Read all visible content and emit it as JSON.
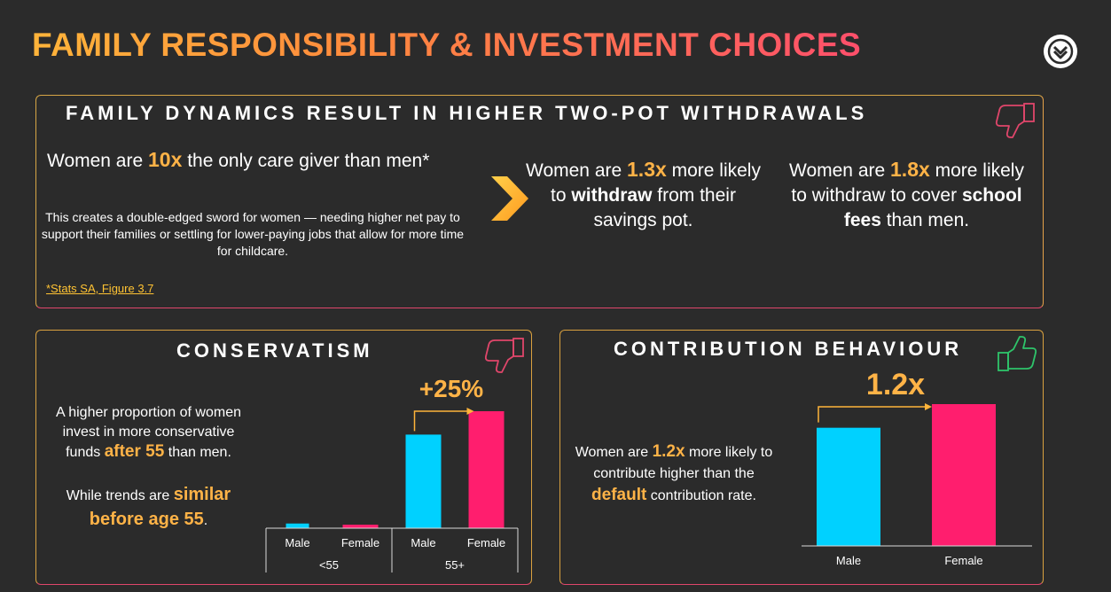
{
  "title": "FAMILY RESPONSIBILITY & INVESTMENT CHOICES",
  "icons": {
    "logo": "discovery-logo-icon",
    "thumbs_down": "thumbs-down-icon",
    "thumbs_up": "thumbs-up-icon",
    "arrow": "chevron-right-icon"
  },
  "colors": {
    "orange": "#ffb347",
    "pink": "#ff1e6e",
    "cyan": "#00d1ff",
    "accent_arrow": "#ffb43a"
  },
  "family": {
    "heading": "FAMILY DYNAMICS RESULT IN HIGHER TWO-POT WITHDRAWALS",
    "stat1": {
      "pre": "Women are ",
      "value": "10x",
      "post": " the only care giver than men*"
    },
    "description": "This creates a double-edged sword for women — needing higher net pay to support their families or settling for lower-paying jobs that allow for more time for childcare.",
    "source": "*Stats SA, Figure 3.7",
    "stat2": {
      "pre": "Women are ",
      "value": "1.3x",
      "mid": " more likely to ",
      "bold": "withdraw",
      "post": " from their savings pot."
    },
    "stat3": {
      "pre": "Women are ",
      "value": "1.8x",
      "mid": " more likely to withdraw to cover ",
      "bold": "school fees",
      "post": " than men."
    }
  },
  "conservatism": {
    "heading": "CONSERVATISM",
    "text1": {
      "pre": "A higher proportion of women invest in more conservative funds ",
      "value": "after 55",
      "post": " than men."
    },
    "text2": {
      "pre": "While trends are ",
      "value": "similar before age 55",
      "post": "."
    }
  },
  "contribution": {
    "heading": "CONTRIBUTION BEHAVIOUR",
    "text": {
      "pre": "Women are ",
      "value": "1.2x",
      "mid": " more likely to contribute higher than the ",
      "bold": "default",
      "post": " contribution rate."
    }
  },
  "chart_data": [
    {
      "type": "bar",
      "groups": [
        "<55",
        "55+"
      ],
      "categories": [
        "Male",
        "Female",
        "Male",
        "Female"
      ],
      "category_group": [
        "<55",
        "<55",
        "55+",
        "55+"
      ],
      "values": [
        4,
        3,
        80,
        100
      ],
      "colors": [
        "#00d1ff",
        "#ff1e6e",
        "#00d1ff",
        "#ff1e6e"
      ],
      "annotation": "+25%",
      "ylim": [
        0,
        100
      ],
      "grid": false
    },
    {
      "type": "bar",
      "categories": [
        "Male",
        "Female"
      ],
      "values": [
        100,
        120
      ],
      "colors": [
        "#00d1ff",
        "#ff1e6e"
      ],
      "annotation": "1.2x",
      "ylim": [
        0,
        120
      ],
      "grid": false
    }
  ]
}
